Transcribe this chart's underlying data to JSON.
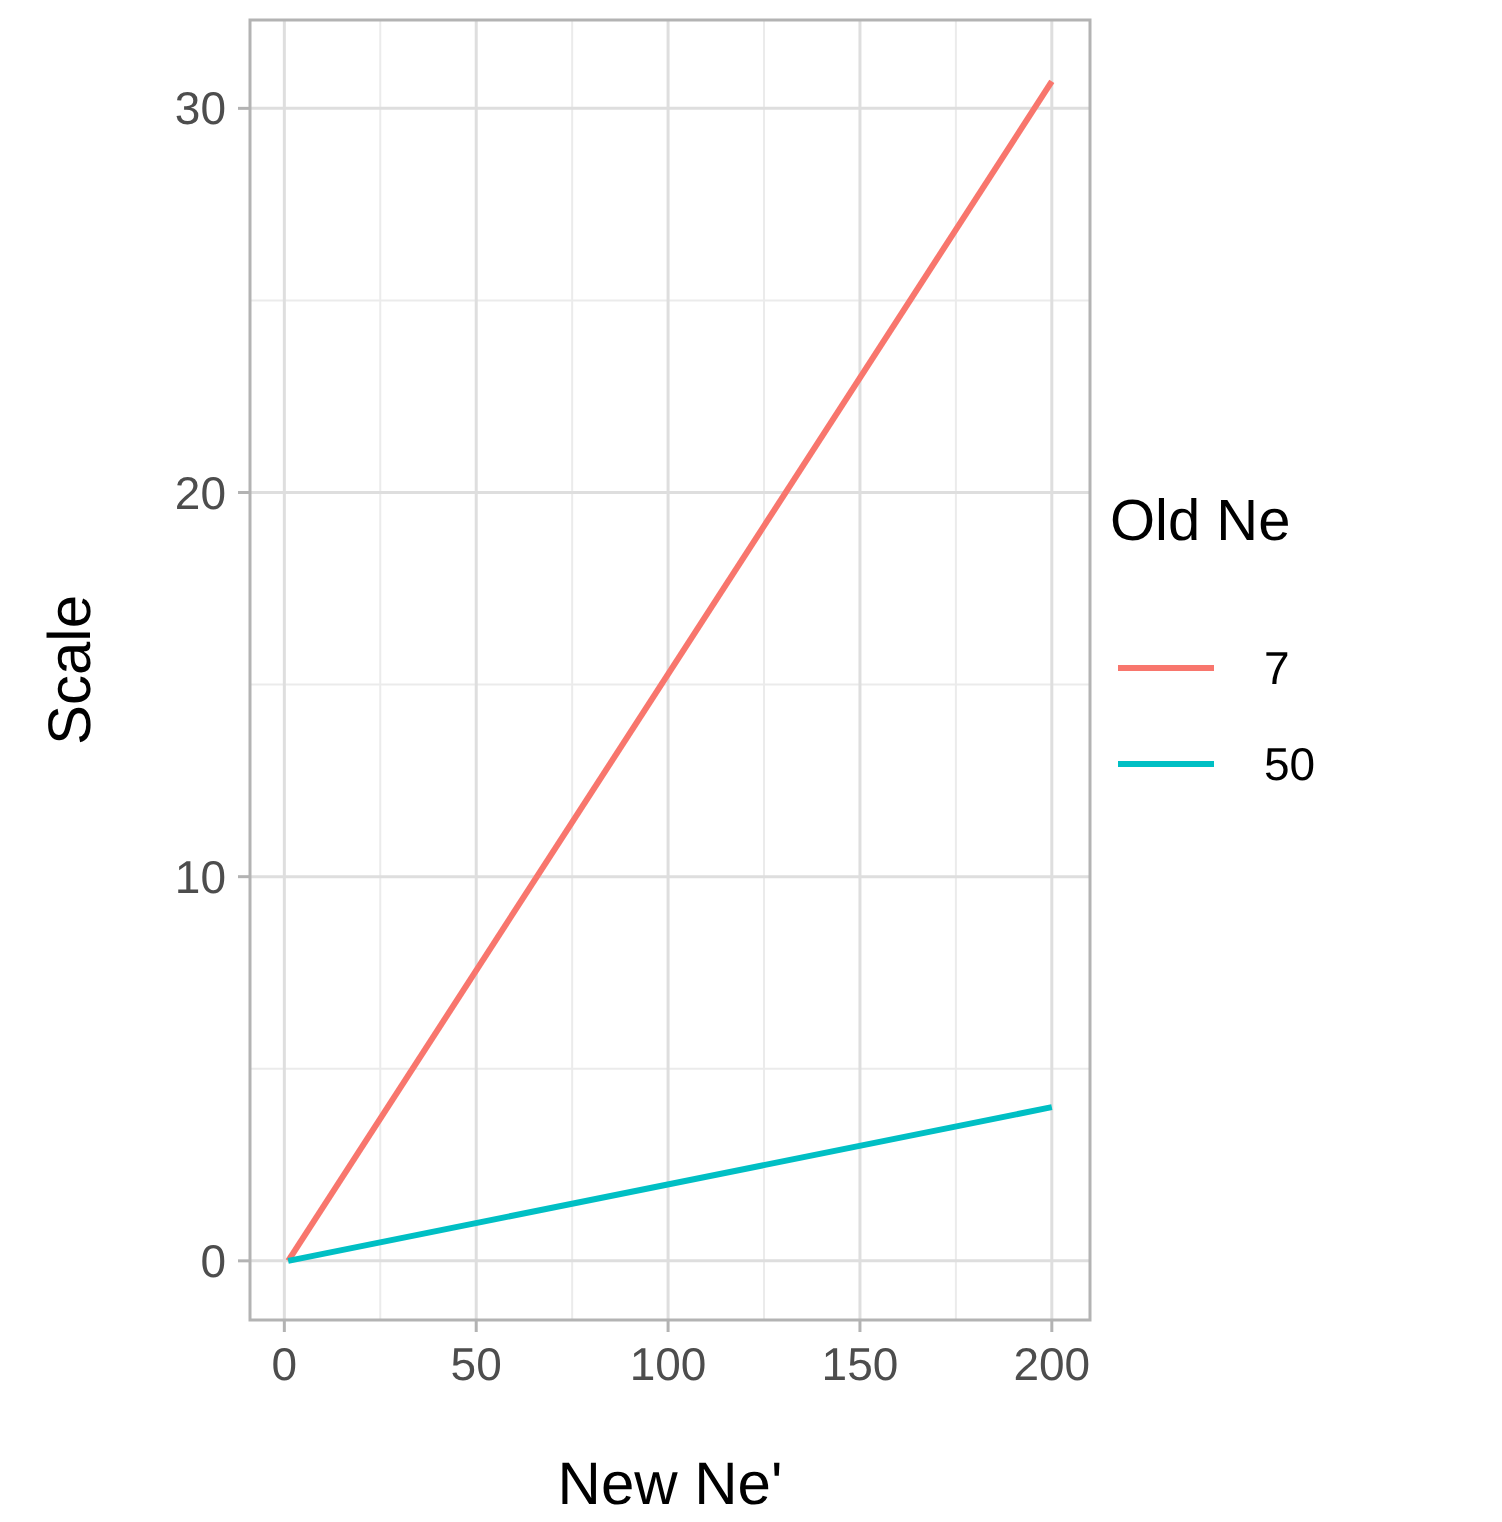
{
  "chart_data": {
    "type": "line",
    "xlabel": "New Ne'",
    "ylabel": "Scale",
    "legend_title": "Old Ne",
    "x": [
      1,
      200
    ],
    "series": [
      {
        "name": "7",
        "color": "#f8766d",
        "values": [
          0,
          30.7
        ]
      },
      {
        "name": "50",
        "color": "#00bfc4",
        "values": [
          0,
          4
        ]
      }
    ],
    "xlim": [
      -8.95,
      209.95
    ],
    "xticks": [
      0,
      50,
      100,
      150,
      200
    ],
    "ylim": [
      -1.54,
      32.3
    ],
    "yticks": [
      0,
      10,
      20,
      30
    ],
    "grid": true,
    "legend": "right"
  }
}
